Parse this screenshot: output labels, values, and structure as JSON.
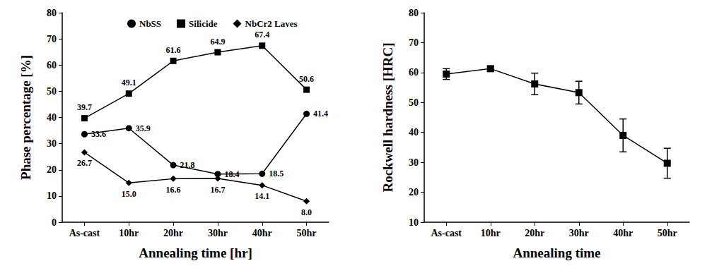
{
  "chart_data": [
    {
      "type": "line",
      "xlabel": "Annealing time [hr]",
      "ylabel": "Phase percentage [%]",
      "categories": [
        "As-cast",
        "10hr",
        "20hr",
        "30hr",
        "40hr",
        "50hr"
      ],
      "ylim": [
        0,
        80
      ],
      "yticks": [
        0,
        10,
        20,
        30,
        40,
        50,
        60,
        70,
        80
      ],
      "grid": false,
      "legend": "top",
      "data_labels": true,
      "series": [
        {
          "name": "NbSS",
          "color": "#000000",
          "marker": "circle",
          "values": [
            33.6,
            35.9,
            21.8,
            18.4,
            18.5,
            41.4
          ],
          "value_labels": [
            "33.6",
            "35.9",
            "21.8",
            "18.4",
            "18.5",
            "41.4"
          ]
        },
        {
          "name": "Silicide",
          "color": "#000000",
          "marker": "square",
          "values": [
            39.7,
            49.1,
            61.6,
            64.9,
            67.4,
            50.6
          ],
          "value_labels": [
            "39.7",
            "49.1",
            "61.6",
            "64.9",
            "67.4",
            "50.6"
          ]
        },
        {
          "name": "NbCr2 Laves",
          "color": "#000000",
          "marker": "diamond",
          "values": [
            26.7,
            15.0,
            16.6,
            16.7,
            14.1,
            8.0
          ],
          "value_labels": [
            "26.7",
            "15.0",
            "16.6",
            "16.7",
            "14.1",
            "8.0"
          ]
        }
      ]
    },
    {
      "type": "line",
      "xlabel": "Annealing time",
      "ylabel": "Rockwell hardness [HRC]",
      "categories": [
        "As-cast",
        "10hr",
        "20hr",
        "30hr",
        "40hr",
        "50hr"
      ],
      "ylim": [
        10,
        80
      ],
      "yticks": [
        10,
        20,
        30,
        40,
        50,
        60,
        70,
        80
      ],
      "grid": false,
      "color": "#000000",
      "marker": "square",
      "values": [
        59.5,
        61.3,
        56.2,
        53.3,
        39.0,
        29.7
      ],
      "errors": [
        1.8,
        0.8,
        3.6,
        3.8,
        5.5,
        5.0
      ]
    }
  ]
}
